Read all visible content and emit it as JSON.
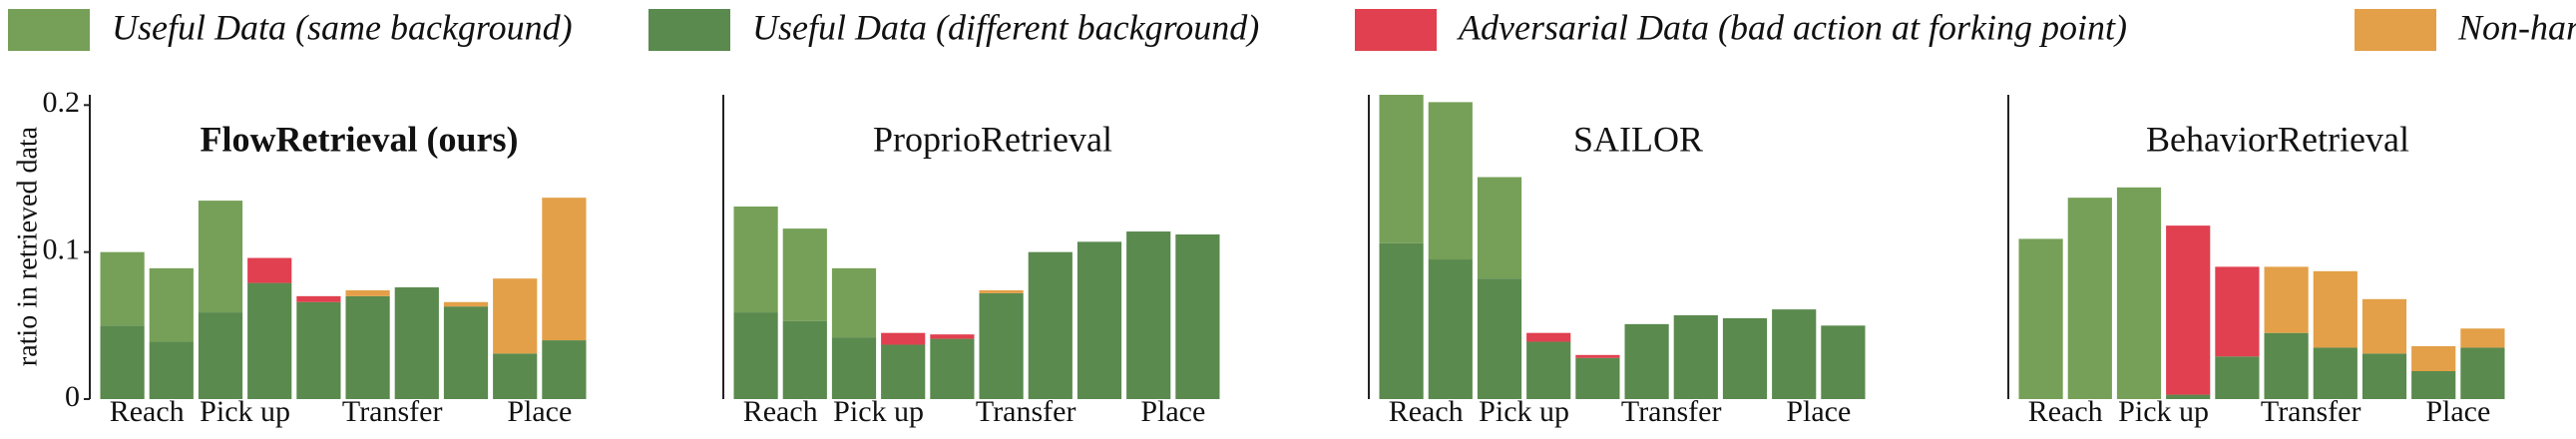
{
  "ylabel": "ratio in retrieved data",
  "legend": [
    {
      "name": "Useful Data (same background)",
      "color": "#76a058"
    },
    {
      "name": "Useful Data (different background)",
      "color": "#5a8a4e"
    },
    {
      "name": "Adversarial Data (bad action at forking point)",
      "color": "#e0404f"
    },
    {
      "name": "Non-harmful Data",
      "color": "#e3a048"
    }
  ],
  "chart_data": [
    {
      "type": "bar",
      "stacked": true,
      "title": "FlowRetrieval (ours)",
      "bold": true,
      "categories": [
        "Reach",
        null,
        "Pick up",
        null,
        "Transfer",
        null,
        null,
        null,
        "Place",
        null
      ],
      "ylim": [
        0,
        0.207
      ],
      "yticks": [
        0,
        0.1,
        0.2
      ],
      "series": [
        {
          "values": [
            0.05,
            0.05,
            0.076,
            0,
            0,
            0,
            0,
            0,
            0,
            0
          ]
        },
        {
          "values": [
            0.05,
            0.039,
            0.059,
            0.079,
            0.066,
            0.07,
            0.076,
            0.063,
            0.031,
            0.04
          ]
        },
        {
          "values": [
            0,
            0,
            0,
            0.017,
            0.004,
            0,
            0,
            0,
            0,
            0
          ]
        },
        {
          "values": [
            0,
            0,
            0,
            0,
            0,
            0.004,
            0,
            0.003,
            0.051,
            0.097
          ]
        }
      ]
    },
    {
      "type": "bar",
      "stacked": true,
      "title": "ProprioRetrieval",
      "categories": [
        "Reach",
        null,
        "Pick up",
        null,
        "Transfer",
        null,
        null,
        null,
        "Place",
        null
      ],
      "ylim": [
        0,
        0.207
      ],
      "series": [
        {
          "values": [
            0.072,
            0.063,
            0.047,
            0,
            0,
            0,
            0,
            0,
            0,
            0
          ]
        },
        {
          "values": [
            0.059,
            0.053,
            0.042,
            0.037,
            0.041,
            0.072,
            0.1,
            0.107,
            0.114,
            0.112
          ]
        },
        {
          "values": [
            0,
            0,
            0,
            0.008,
            0.003,
            0,
            0,
            0,
            0,
            0
          ]
        },
        {
          "values": [
            0,
            0,
            0,
            0,
            0,
            0.002,
            0,
            0,
            0,
            0
          ]
        }
      ]
    },
    {
      "type": "bar",
      "stacked": true,
      "title": "SAILOR",
      "categories": [
        "Reach",
        null,
        "Pick up",
        null,
        "Transfer",
        null,
        null,
        null,
        "Place",
        null
      ],
      "ylim": [
        0,
        0.207
      ],
      "series": [
        {
          "values": [
            0.101,
            0.107,
            0.069,
            0,
            0,
            0,
            0,
            0,
            0,
            0
          ]
        },
        {
          "values": [
            0.106,
            0.095,
            0.082,
            0.039,
            0.028,
            0.051,
            0.057,
            0.055,
            0.061,
            0.05
          ]
        },
        {
          "values": [
            0,
            0,
            0,
            0.006,
            0.002,
            0,
            0,
            0,
            0,
            0
          ]
        },
        {
          "values": [
            0,
            0,
            0,
            0,
            0,
            0,
            0,
            0,
            0,
            0
          ]
        }
      ]
    },
    {
      "type": "bar",
      "stacked": true,
      "title": "BehaviorRetrieval",
      "categories": [
        "Reach",
        null,
        "Pick up",
        null,
        "Transfer",
        null,
        null,
        null,
        "Place",
        null
      ],
      "ylim": [
        0,
        0.207
      ],
      "series": [
        {
          "values": [
            0.109,
            0.137,
            0.144,
            0,
            0,
            0,
            0,
            0,
            0,
            0
          ]
        },
        {
          "values": [
            0,
            0,
            0,
            0.003,
            0.029,
            0.045,
            0.035,
            0.031,
            0.019,
            0.035
          ]
        },
        {
          "values": [
            0,
            0,
            0,
            0.115,
            0.061,
            0,
            0,
            0,
            0,
            0
          ]
        },
        {
          "values": [
            0,
            0,
            0,
            0,
            0,
            0.045,
            0.052,
            0.037,
            0.017,
            0.013
          ]
        }
      ]
    }
  ]
}
